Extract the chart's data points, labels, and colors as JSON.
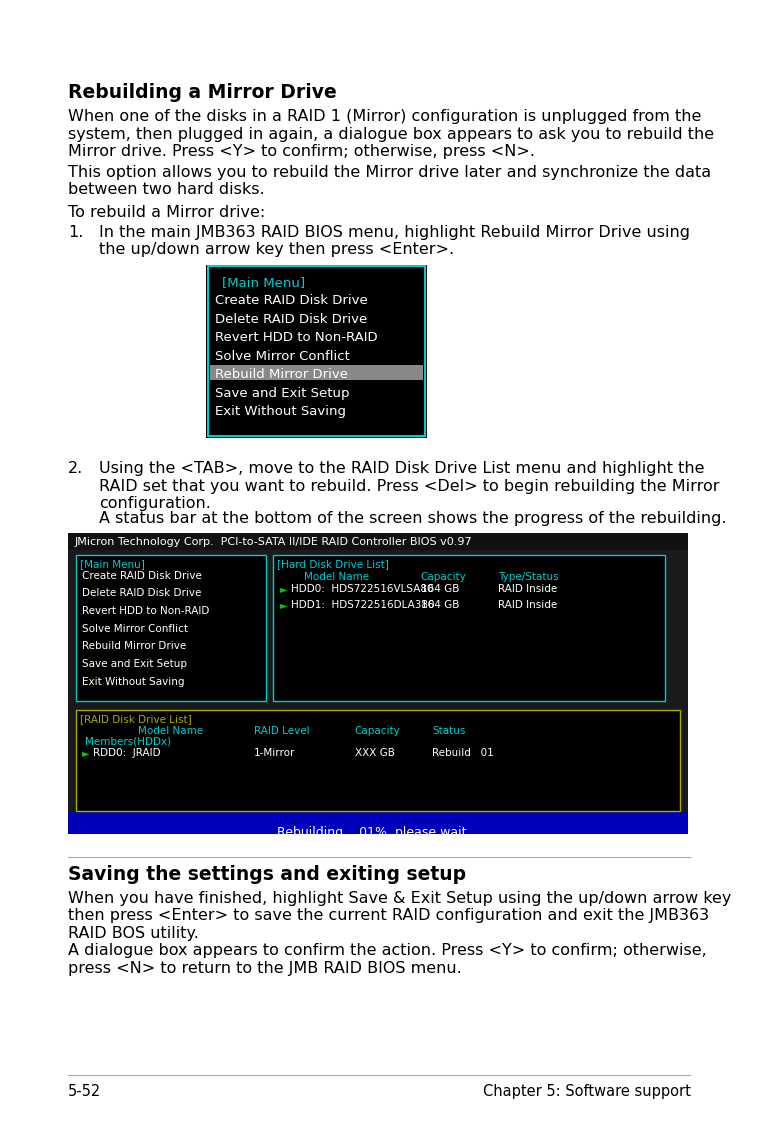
{
  "bg_color": "#ffffff",
  "title1": "Rebuilding a Mirror Drive",
  "para1": "When one of the disks in a RAID 1 (Mirror) configuration is unplugged from the\nsystem, then plugged in again, a dialogue box appears to ask you to rebuild the\nMirror drive. Press <Y> to confirm; otherwise, press <N>.",
  "para2": "This option allows you to rebuild the Mirror drive later and synchronize the data\nbetween two hard disks.",
  "para3": "To rebuild a Mirror drive:",
  "step1_num": "1.",
  "step1_text": "In the main JMB363 RAID BIOS menu, highlight Rebuild Mirror Drive using\nthe up/down arrow key then press <Enter>.",
  "step2_num": "2.",
  "step2_text": "Using the <TAB>, move to the RAID Disk Drive List menu and highlight the\nRAID set that you want to rebuild. Press <Del> to begin rebuilding the Mirror\nconfiguration.",
  "step2b_text": "A status bar at the bottom of the screen shows the progress of the rebuilding.",
  "menu1_items": [
    "[Main Menu]",
    "Create RAID Disk Drive",
    "Delete RAID Disk Drive",
    "Revert HDD to Non-RAID",
    "Solve Mirror Conflict",
    "Rebuild Mirror Drive",
    "Save and Exit Setup",
    "Exit Without Saving"
  ],
  "menu1_highlight": 5,
  "title2": "Saving the settings and exiting setup",
  "para4": "When you have finished, highlight Save & Exit Setup using the up/down arrow key\nthen press <Enter> to save the current RAID configuration and exit the JMB363\nRAID BOS utility.",
  "para5": "A dialogue box appears to confirm the action. Press <Y> to confirm; otherwise,\npress <N> to return to the JMB RAID BIOS menu.",
  "footer_left": "5-52",
  "footer_right": "Chapter 5: Software support",
  "bios_header": "JMicron Technology Corp.  PCI-to-SATA II/IDE RAID Controller BIOS v0.97",
  "main_menu_items": [
    "Create RAID Disk Drive",
    "Delete RAID Disk Drive",
    "Revert HDD to Non-RAID",
    "Solve Mirror Conflict",
    "Rebuild Mirror Drive",
    "Save and Exit Setup",
    "Exit Without Saving"
  ],
  "hdd_list_title": "[Hard Disk Drive List]",
  "raid_list_title": "[RAID Disk Drive List]",
  "raid_members": "Members(HDDx)",
  "rebuild_status": "Rebuilding... 01%, please wait..."
}
